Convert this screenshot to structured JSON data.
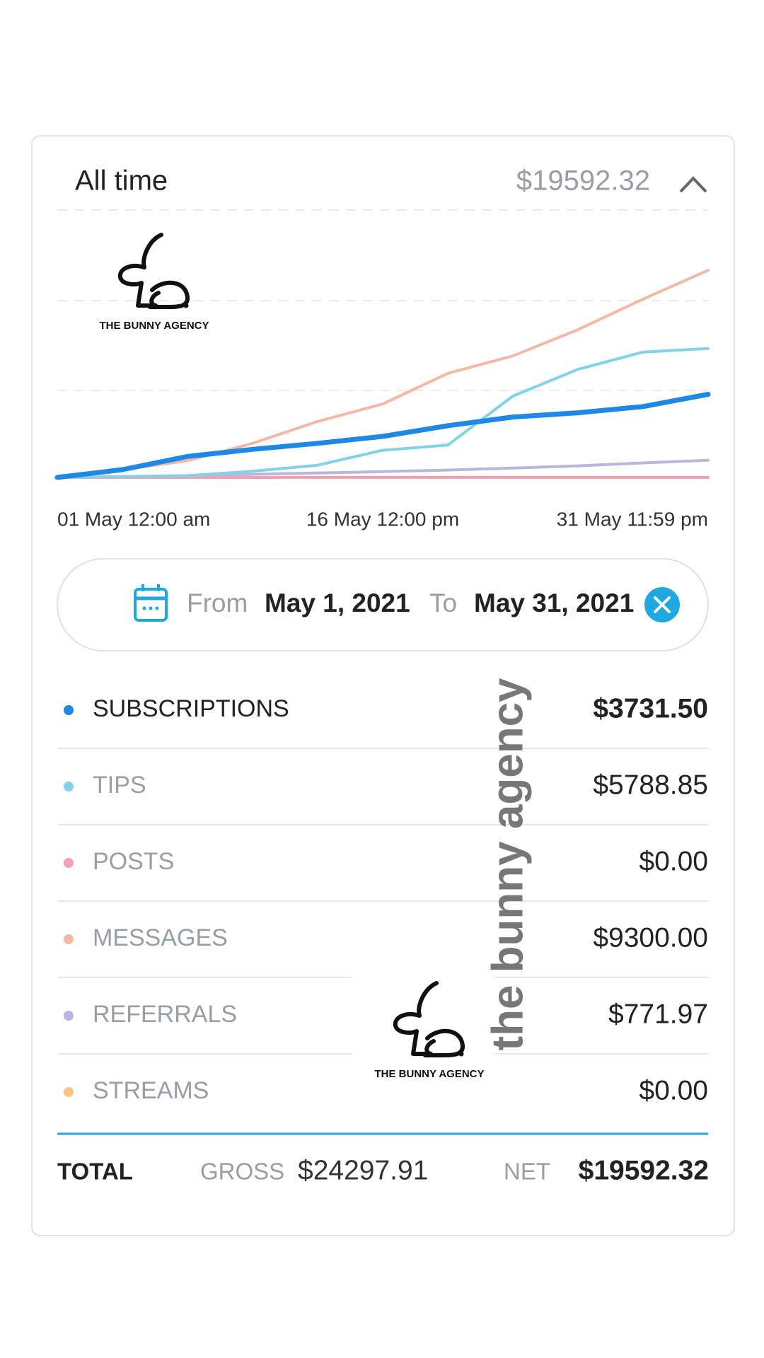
{
  "header": {
    "period": "All time",
    "amount": "$19592.32"
  },
  "watermark": {
    "logo": "THE BUNNY AGENCY",
    "vertical": "the bunny agency"
  },
  "chart_data": {
    "type": "line",
    "categories": [
      "01 May 12:00 am",
      null,
      null,
      null,
      null,
      "16 May 12:00 pm",
      null,
      null,
      null,
      null,
      "31 May 11:59 pm"
    ],
    "ylim": [
      0,
      12000
    ],
    "series": [
      {
        "name": "SUBSCRIPTIONS",
        "color": "#1e88e5",
        "total": "$3731.50",
        "values": [
          0,
          350,
          940,
          1260,
          1530,
          1840,
          2320,
          2710,
          2900,
          3180,
          3731.5
        ]
      },
      {
        "name": "TIPS",
        "color": "#80d4e6",
        "total": "$5788.85",
        "values": [
          0,
          40,
          80,
          280,
          550,
          1220,
          1450,
          3650,
          4850,
          5630,
          5788.85
        ]
      },
      {
        "name": "POSTS",
        "color": "#f2a0b3",
        "total": "$0.00",
        "values": [
          0,
          0,
          0,
          0,
          0,
          0,
          0,
          0,
          0,
          0,
          0
        ]
      },
      {
        "name": "MESSAGES",
        "color": "#f4b8a4",
        "total": "$9300.00",
        "values": [
          0,
          353,
          745,
          1530,
          2511,
          3296,
          4669,
          5454,
          6631,
          8004,
          9300
        ]
      },
      {
        "name": "REFERRALS",
        "color": "#bdb4e0",
        "total": "$771.97",
        "values": [
          0,
          30,
          80,
          140,
          200,
          260,
          330,
          420,
          520,
          650,
          771.97
        ]
      },
      {
        "name": "STREAMS",
        "color": "#f5c77e",
        "total": "$0.00",
        "values": [
          0,
          0,
          0,
          0,
          0,
          0,
          0,
          0,
          0,
          0,
          0
        ]
      }
    ]
  },
  "date_range": {
    "from_label": "From",
    "from": "May 1, 2021",
    "to_label": "To",
    "to": "May 31, 2021"
  },
  "total": {
    "label": "TOTAL",
    "gross_label": "GROSS",
    "gross": "$24297.91",
    "net_label": "NET",
    "net": "$19592.32"
  }
}
